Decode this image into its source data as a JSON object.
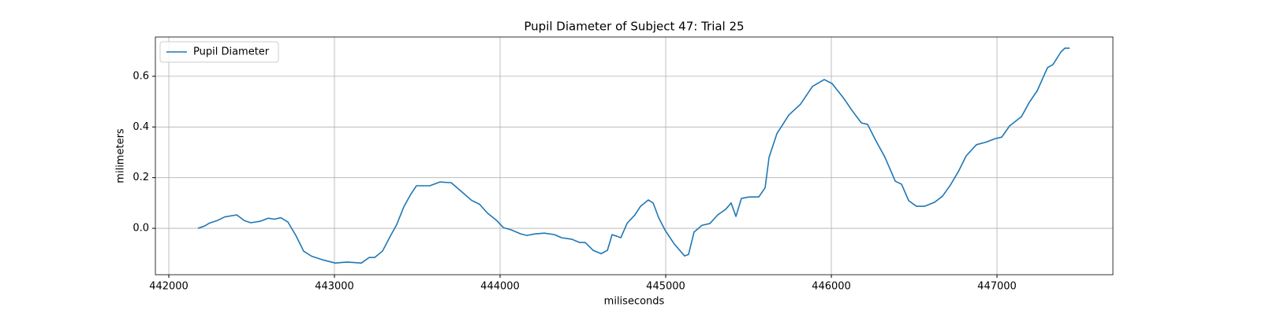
{
  "chart_data": {
    "type": "line",
    "title": "Pupil Diameter of Subject 47: Trial 25",
    "xlabel": "miliseconds",
    "ylabel": "milimeters",
    "x": [
      442176,
      442219,
      442243,
      442290,
      442338,
      442410,
      442457,
      442495,
      442552,
      442600,
      442638,
      442676,
      442719,
      442767,
      442814,
      442862,
      442933,
      443005,
      443076,
      443162,
      443210,
      443243,
      443290,
      443338,
      443376,
      443419,
      443457,
      443495,
      443576,
      443638,
      443705,
      443767,
      443829,
      443876,
      443924,
      443981,
      444019,
      444067,
      444124,
      444162,
      444210,
      444267,
      444329,
      444371,
      444433,
      444481,
      444514,
      444562,
      444610,
      444648,
      444676,
      444705,
      444729,
      444767,
      444814,
      444848,
      444895,
      444924,
      444957,
      444995,
      445052,
      445114,
      445138,
      445171,
      445219,
      445267,
      445314,
      445362,
      445395,
      445424,
      445457,
      445505,
      445562,
      445600,
      445624,
      445671,
      445743,
      445814,
      445886,
      445957,
      446005,
      446076,
      446124,
      446181,
      446219,
      446267,
      446324,
      446386,
      446424,
      446467,
      446514,
      446562,
      446624,
      446671,
      446719,
      446767,
      446814,
      446876,
      446933,
      446990,
      447029,
      447076,
      447148,
      447195,
      447243,
      447305,
      447338,
      447386,
      447410,
      447438
    ],
    "series": [
      {
        "name": "Pupil Diameter",
        "color": "#1f77b4",
        "values": [
          0,
          0.01,
          0.02,
          0.03,
          0.045,
          0.053,
          0.03,
          0.022,
          0.028,
          0.04,
          0.036,
          0.042,
          0.025,
          -0.028,
          -0.09,
          -0.11,
          -0.125,
          -0.137,
          -0.133,
          -0.137,
          -0.115,
          -0.115,
          -0.09,
          -0.03,
          0.015,
          0.085,
          0.13,
          0.168,
          0.168,
          0.183,
          0.18,
          0.145,
          0.11,
          0.095,
          0.06,
          0.03,
          0.003,
          -0.006,
          -0.022,
          -0.028,
          -0.022,
          -0.019,
          -0.025,
          -0.037,
          -0.043,
          -0.056,
          -0.056,
          -0.087,
          -0.1,
          -0.087,
          -0.025,
          -0.031,
          -0.037,
          0.02,
          0.053,
          0.087,
          0.112,
          0.1,
          0.043,
          -0.006,
          -0.062,
          -0.109,
          -0.103,
          -0.015,
          0.012,
          0.019,
          0.053,
          0.075,
          0.1,
          0.047,
          0.118,
          0.124,
          0.124,
          0.16,
          0.28,
          0.373,
          0.447,
          0.49,
          0.56,
          0.587,
          0.571,
          0.512,
          0.466,
          0.416,
          0.41,
          0.348,
          0.28,
          0.186,
          0.174,
          0.109,
          0.087,
          0.087,
          0.103,
          0.127,
          0.171,
          0.224,
          0.286,
          0.33,
          0.34,
          0.354,
          0.36,
          0.404,
          0.441,
          0.497,
          0.543,
          0.634,
          0.646,
          0.696,
          0.711,
          0.711
        ]
      }
    ],
    "xlim": [
      441919,
      447700
    ],
    "ylim": [
      -0.183,
      0.755
    ],
    "xticks": [
      442000,
      443000,
      444000,
      445000,
      446000,
      447000
    ],
    "yticks": [
      {
        "value": 0,
        "label": "0.0"
      },
      0.2,
      0.4,
      0.6
    ],
    "grid": true,
    "legend": "upper left"
  }
}
